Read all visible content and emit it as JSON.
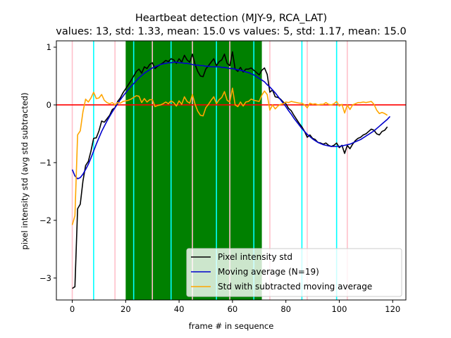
{
  "chart_data": {
    "type": "line",
    "title": "Heartbeat detection (MJY-9, RCA_LAT)",
    "subtitle": "values: 13, std: 1.33, mean: 15.0 vs values: 5, std: 1.17, mean: 15.0",
    "xlabel": "frame # in sequence",
    "ylabel": "pixel intensity std (avg std subtracted)",
    "xlim": [
      -5.95,
      124.95
    ],
    "ylim": [
      -3.38,
      1.11
    ],
    "xticks": [
      0,
      20,
      40,
      60,
      80,
      100,
      120
    ],
    "xtick_labels": [
      "0",
      "20",
      "40",
      "60",
      "80",
      "100",
      "120"
    ],
    "yticks": [
      -3,
      -2,
      -1,
      0,
      1
    ],
    "ytick_labels": [
      "−3",
      "−2",
      "−1",
      "0",
      "1"
    ],
    "legend_position": "lower-right",
    "highlight_band": {
      "from": 20,
      "to": 71,
      "color": "#008000"
    },
    "zero_line": {
      "y": 0,
      "color": "#ff0000"
    },
    "vlines_cyan": {
      "color": "#00ffff",
      "x": [
        8,
        23,
        37,
        54,
        68,
        86,
        99
      ]
    },
    "vlines_pink": {
      "color": "#ffc0cb",
      "x": [
        0,
        16,
        30,
        45,
        59,
        74,
        88,
        103
      ]
    },
    "series": [
      {
        "name": "Pixel intensity std",
        "color": "#000000",
        "values": [
          -3.18,
          -3.15,
          -1.8,
          -1.72,
          -1.32,
          -1.05,
          -0.98,
          -0.8,
          -0.58,
          -0.57,
          -0.45,
          -0.28,
          -0.3,
          -0.24,
          -0.18,
          -0.08,
          -0.05,
          0.06,
          0.12,
          0.21,
          0.28,
          0.35,
          0.42,
          0.5,
          0.58,
          0.62,
          0.55,
          0.66,
          0.63,
          0.7,
          0.73,
          0.63,
          0.67,
          0.7,
          0.73,
          0.77,
          0.75,
          0.8,
          0.78,
          0.72,
          0.8,
          0.74,
          0.86,
          0.78,
          0.74,
          0.88,
          0.7,
          0.58,
          0.5,
          0.49,
          0.62,
          0.68,
          0.74,
          0.8,
          0.68,
          0.75,
          0.78,
          0.88,
          0.72,
          0.68,
          0.92,
          0.62,
          0.58,
          0.65,
          0.57,
          0.62,
          0.62,
          0.64,
          0.6,
          0.56,
          0.52,
          0.6,
          0.64,
          0.53,
          0.22,
          0.26,
          0.14,
          0.13,
          0.1,
          0.05,
          0.02,
          -0.06,
          -0.1,
          -0.18,
          -0.25,
          -0.32,
          -0.38,
          -0.46,
          -0.56,
          -0.52,
          -0.58,
          -0.6,
          -0.65,
          -0.66,
          -0.68,
          -0.66,
          -0.7,
          -0.72,
          -0.7,
          -0.66,
          -0.74,
          -0.7,
          -0.84,
          -0.7,
          -0.76,
          -0.68,
          -0.62,
          -0.58,
          -0.56,
          -0.52,
          -0.5,
          -0.46,
          -0.42,
          -0.44,
          -0.5,
          -0.52,
          -0.46,
          -0.44,
          -0.38
        ]
      },
      {
        "name": "Moving average (N=19)",
        "color": "#0000cc",
        "values": [
          -1.12,
          -1.23,
          -1.28,
          -1.26,
          -1.2,
          -1.12,
          -1.03,
          -0.92,
          -0.8,
          -0.68,
          -0.57,
          -0.46,
          -0.37,
          -0.28,
          -0.2,
          -0.12,
          -0.05,
          0.02,
          0.09,
          0.15,
          0.21,
          0.27,
          0.32,
          0.37,
          0.42,
          0.47,
          0.51,
          0.55,
          0.58,
          0.61,
          0.64,
          0.66,
          0.68,
          0.7,
          0.71,
          0.72,
          0.73,
          0.73,
          0.74,
          0.74,
          0.73,
          0.73,
          0.72,
          0.72,
          0.71,
          0.7,
          0.69,
          0.69,
          0.68,
          0.68,
          0.67,
          0.67,
          0.66,
          0.66,
          0.66,
          0.66,
          0.65,
          0.65,
          0.64,
          0.63,
          0.63,
          0.62,
          0.61,
          0.6,
          0.59,
          0.57,
          0.56,
          0.54,
          0.52,
          0.49,
          0.46,
          0.43,
          0.4,
          0.35,
          0.31,
          0.26,
          0.21,
          0.15,
          0.09,
          0.03,
          -0.03,
          -0.1,
          -0.16,
          -0.23,
          -0.29,
          -0.35,
          -0.41,
          -0.46,
          -0.51,
          -0.55,
          -0.59,
          -0.62,
          -0.65,
          -0.67,
          -0.69,
          -0.7,
          -0.71,
          -0.72,
          -0.72,
          -0.72,
          -0.72,
          -0.71,
          -0.7,
          -0.69,
          -0.68,
          -0.66,
          -0.64,
          -0.62,
          -0.6,
          -0.57,
          -0.54,
          -0.51,
          -0.48,
          -0.45,
          -0.41,
          -0.37,
          -0.33,
          -0.29,
          -0.25,
          -0.2
        ]
      },
      {
        "name": "Std with subtracted moving average",
        "color": "#ffa500",
        "values": [
          -2.08,
          -1.92,
          -0.52,
          -0.45,
          -0.12,
          0.1,
          0.05,
          0.12,
          0.22,
          0.11,
          0.12,
          0.18,
          0.08,
          0.04,
          0.02,
          0.04,
          0.0,
          0.04,
          0.03,
          0.06,
          0.07,
          0.08,
          0.1,
          0.13,
          0.16,
          0.15,
          0.04,
          0.11,
          0.05,
          0.09,
          0.09,
          -0.03,
          -0.01,
          0.0,
          0.02,
          0.05,
          0.02,
          0.07,
          0.04,
          -0.02,
          0.07,
          0.01,
          0.14,
          0.06,
          0.03,
          0.18,
          0.01,
          -0.11,
          -0.18,
          -0.19,
          -0.05,
          0.01,
          0.08,
          0.14,
          0.02,
          0.09,
          0.13,
          0.23,
          0.08,
          0.05,
          0.29,
          0.0,
          -0.03,
          0.05,
          -0.02,
          0.05,
          0.06,
          0.1,
          0.08,
          0.07,
          0.06,
          0.17,
          0.24,
          0.18,
          -0.09,
          0.0,
          -0.07,
          -0.02,
          0.01,
          0.02,
          0.05,
          0.04,
          0.06,
          0.05,
          0.04,
          0.03,
          0.03,
          0.0,
          -0.05,
          0.03,
          0.01,
          0.02,
          0.0,
          0.01,
          0.01,
          0.04,
          0.01,
          0.0,
          0.02,
          0.06,
          -0.02,
          0.01,
          -0.14,
          0.0,
          -0.08,
          0.0,
          0.02,
          0.04,
          0.04,
          0.05,
          0.04,
          0.05,
          0.06,
          0.01,
          -0.09,
          -0.15,
          -0.13,
          -0.15,
          -0.18
        ]
      }
    ]
  }
}
